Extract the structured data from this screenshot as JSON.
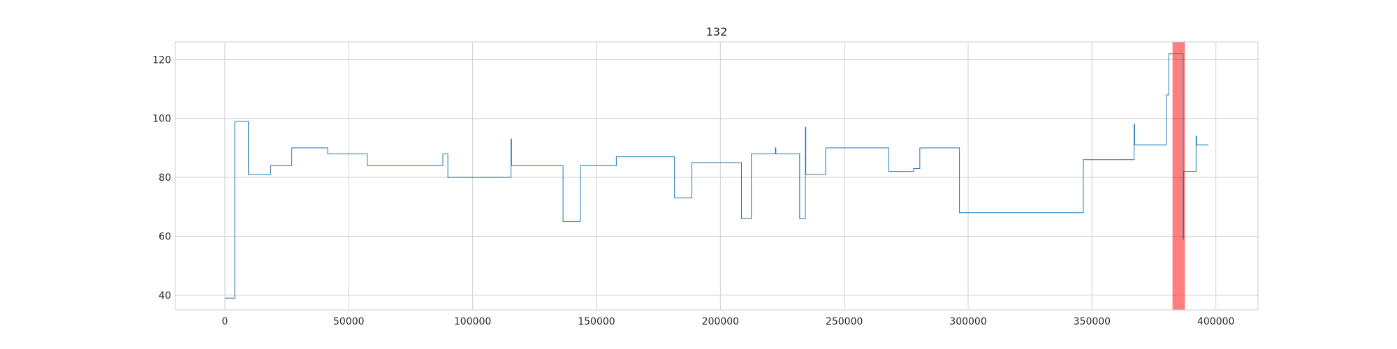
{
  "chart_data": {
    "type": "line",
    "title": "132",
    "xlabel": "",
    "ylabel": "",
    "xlim": [
      -20000,
      417000
    ],
    "ylim": [
      35,
      126
    ],
    "xticks": [
      0,
      50000,
      100000,
      150000,
      200000,
      250000,
      300000,
      350000,
      400000
    ],
    "yticks": [
      40,
      60,
      80,
      100,
      120
    ],
    "grid": true,
    "colors": {
      "line": "#1f77b4",
      "highlight": "#ff0000",
      "grid": "#d0d0d0",
      "frame": "#cccccc"
    },
    "highlight_span": {
      "x_start": 382500,
      "x_end": 387500,
      "opacity": 0.5
    },
    "series": [
      {
        "x": [
          0,
          4000,
          4000,
          9500,
          9500,
          18500,
          18500,
          27000,
          27000,
          41500,
          41500,
          57500,
          57500,
          88000,
          88000,
          90000,
          90000,
          115500,
          115500,
          115700,
          115700,
          136500,
          136500,
          143500,
          143500,
          158000,
          158000,
          181500,
          181500,
          188500,
          188500,
          208500,
          208500,
          212500,
          212500,
          222200,
          222200,
          222400,
          222400,
          232000,
          232000,
          234300,
          234300,
          234500,
          234500,
          242500,
          242500,
          268000,
          268000,
          278000,
          278000,
          280500,
          280500,
          296500,
          296500,
          346500,
          346500,
          367000,
          367000,
          367200,
          367200,
          375000,
          375000,
          380000,
          380000,
          381000,
          381000,
          386800,
          386800,
          387000,
          387000,
          392000,
          392000,
          392200,
          392200,
          397000
        ],
        "y": [
          39,
          39,
          99,
          99,
          81,
          81,
          84,
          84,
          90,
          90,
          88,
          88,
          84,
          84,
          88,
          88,
          80,
          80,
          93,
          93,
          84,
          84,
          65,
          65,
          84,
          84,
          87,
          87,
          73,
          73,
          85,
          85,
          66,
          66,
          88,
          88,
          90,
          90,
          88,
          88,
          66,
          66,
          97,
          97,
          81,
          81,
          90,
          90,
          82,
          82,
          83,
          83,
          90,
          90,
          68,
          68,
          86,
          86,
          98,
          98,
          91,
          91,
          91,
          91,
          108,
          108,
          122,
          122,
          59,
          59,
          82,
          82,
          94,
          94,
          91,
          91
        ]
      }
    ]
  }
}
